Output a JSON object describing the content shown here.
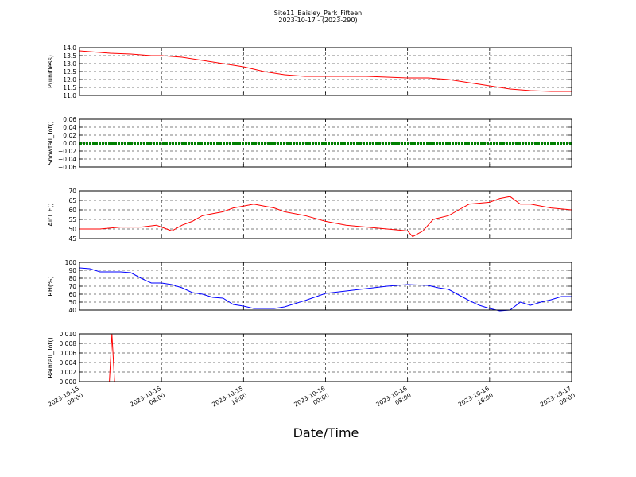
{
  "title_line1": "Site11_Baisley_Park_Fifteen",
  "title_line2": "2023-10-17 - (2023-290)",
  "xlabel": "Date/Time",
  "x_ticks": [
    {
      "line1": "2023-10-15",
      "line2": "00:00"
    },
    {
      "line1": "2023-10-15",
      "line2": "08:00"
    },
    {
      "line1": "2023-10-15",
      "line2": "16:00"
    },
    {
      "line1": "2023-10-16",
      "line2": "00:00"
    },
    {
      "line1": "2023-10-16",
      "line2": "08:00"
    },
    {
      "line1": "2023-10-16",
      "line2": "16:00"
    },
    {
      "line1": "2023-10-17",
      "line2": "00:00"
    }
  ],
  "chart_data": [
    {
      "type": "line",
      "ylabel": "P(unitless)",
      "color": "#ff0000",
      "xlim": [
        "2023-10-15 00:00",
        "2023-10-17 00:00"
      ],
      "ylim": [
        11.0,
        14.0
      ],
      "yticks": [
        "14.0",
        "13.5",
        "13.0",
        "12.5",
        "12.0",
        "11.5",
        "11.0"
      ],
      "grid": true,
      "x": [
        "2023-10-15 00:00",
        "2023-10-15 01:00",
        "2023-10-15 02:00",
        "2023-10-15 03:00",
        "2023-10-15 05:00",
        "2023-10-15 07:00",
        "2023-10-15 08:00",
        "2023-10-15 10:00",
        "2023-10-15 12:00",
        "2023-10-15 14:00",
        "2023-10-15 16:00",
        "2023-10-15 18:00",
        "2023-10-15 20:00",
        "2023-10-15 22:00",
        "2023-10-16 00:00",
        "2023-10-16 04:00",
        "2023-10-16 08:00",
        "2023-10-16 10:00",
        "2023-10-16 12:00",
        "2023-10-16 14:00",
        "2023-10-16 16:00",
        "2023-10-16 18:00",
        "2023-10-16 20:00",
        "2023-10-16 22:00",
        "2023-10-17 00:00"
      ],
      "values": [
        13.8,
        13.75,
        13.7,
        13.65,
        13.6,
        13.5,
        13.5,
        13.4,
        13.2,
        13.0,
        12.8,
        12.5,
        12.3,
        12.2,
        12.2,
        12.2,
        12.1,
        12.1,
        12.0,
        11.8,
        11.6,
        11.4,
        11.3,
        11.25,
        11.25
      ]
    },
    {
      "type": "line",
      "ylabel": "Snowfall_Tot()",
      "color": "#008000",
      "xlim": [
        "2023-10-15 00:00",
        "2023-10-17 00:00"
      ],
      "ylim": [
        -0.06,
        0.06
      ],
      "yticks": [
        "0.06",
        "0.04",
        "0.02",
        "0.00",
        "−0.02",
        "−0.04",
        "−0.06"
      ],
      "grid": true,
      "x": [
        "2023-10-15 00:00",
        "2023-10-17 00:00"
      ],
      "values": [
        0.0,
        0.0
      ]
    },
    {
      "type": "line",
      "ylabel": "AirT F()",
      "color": "#ff0000",
      "xlim": [
        "2023-10-15 00:00",
        "2023-10-17 00:00"
      ],
      "ylim": [
        45,
        70
      ],
      "yticks": [
        "70",
        "65",
        "60",
        "55",
        "50",
        "45"
      ],
      "grid": true,
      "x": [
        "2023-10-15 00:00",
        "2023-10-15 02:00",
        "2023-10-15 04:00",
        "2023-10-15 06:00",
        "2023-10-15 07:30",
        "2023-10-15 08:00",
        "2023-10-15 09:00",
        "2023-10-15 10:00",
        "2023-10-15 11:00",
        "2023-10-15 12:00",
        "2023-10-15 13:00",
        "2023-10-15 14:00",
        "2023-10-15 15:00",
        "2023-10-15 16:00",
        "2023-10-15 17:00",
        "2023-10-15 18:00",
        "2023-10-15 19:00",
        "2023-10-15 20:00",
        "2023-10-15 22:00",
        "2023-10-16 00:00",
        "2023-10-16 02:00",
        "2023-10-16 04:00",
        "2023-10-16 06:00",
        "2023-10-16 08:00",
        "2023-10-16 08:30",
        "2023-10-16 09:30",
        "2023-10-16 10:30",
        "2023-10-16 12:00",
        "2023-10-16 13:00",
        "2023-10-16 14:00",
        "2023-10-16 16:00",
        "2023-10-16 17:00",
        "2023-10-16 18:00",
        "2023-10-16 19:00",
        "2023-10-16 20:00",
        "2023-10-16 22:00",
        "2023-10-17 00:00"
      ],
      "values": [
        50,
        50,
        51,
        51,
        52,
        51,
        49,
        52,
        54,
        57,
        58,
        59,
        61,
        62,
        63,
        62,
        61,
        59,
        57,
        54,
        52,
        51,
        50,
        49,
        46,
        49,
        55,
        57,
        60,
        63,
        64,
        66,
        67,
        63,
        63,
        61,
        60
      ]
    },
    {
      "type": "line",
      "ylabel": "RH(%)",
      "color": "#0000ff",
      "xlim": [
        "2023-10-15 00:00",
        "2023-10-17 00:00"
      ],
      "ylim": [
        40,
        100
      ],
      "yticks": [
        "100",
        "90",
        "80",
        "70",
        "60",
        "50",
        "40"
      ],
      "grid": true,
      "x": [
        "2023-10-15 00:00",
        "2023-10-15 01:00",
        "2023-10-15 02:00",
        "2023-10-15 04:00",
        "2023-10-15 05:00",
        "2023-10-15 06:00",
        "2023-10-15 07:00",
        "2023-10-15 08:00",
        "2023-10-15 09:00",
        "2023-10-15 10:00",
        "2023-10-15 11:00",
        "2023-10-15 12:00",
        "2023-10-15 13:00",
        "2023-10-15 14:00",
        "2023-10-15 15:00",
        "2023-10-15 16:00",
        "2023-10-15 17:00",
        "2023-10-15 18:00",
        "2023-10-15 19:00",
        "2023-10-15 20:00",
        "2023-10-15 22:00",
        "2023-10-16 00:00",
        "2023-10-16 02:00",
        "2023-10-16 04:00",
        "2023-10-16 06:00",
        "2023-10-16 08:00",
        "2023-10-16 10:00",
        "2023-10-16 11:00",
        "2023-10-16 12:00",
        "2023-10-16 13:00",
        "2023-10-16 14:00",
        "2023-10-16 15:00",
        "2023-10-16 16:00",
        "2023-10-16 17:00",
        "2023-10-16 18:00",
        "2023-10-16 19:00",
        "2023-10-16 20:00",
        "2023-10-16 21:00",
        "2023-10-16 22:00",
        "2023-10-16 23:00",
        "2023-10-17 00:00"
      ],
      "values": [
        93,
        92,
        88,
        88,
        87,
        80,
        74,
        74,
        72,
        68,
        62,
        60,
        56,
        55,
        47,
        45,
        42,
        42,
        42,
        44,
        52,
        61,
        64,
        67,
        70,
        72,
        71,
        68,
        66,
        59,
        52,
        46,
        42,
        39,
        40,
        50,
        46,
        50,
        53,
        57,
        57
      ]
    },
    {
      "type": "line",
      "ylabel": "Rainfall_Tot()",
      "color": "#ff0000",
      "xlim": [
        "2023-10-15 00:00",
        "2023-10-17 00:00"
      ],
      "ylim": [
        0.0,
        0.01
      ],
      "yticks": [
        "0.010",
        "0.008",
        "0.006",
        "0.004",
        "0.002",
        "0.000"
      ],
      "grid": true,
      "x": [
        "2023-10-15 00:00",
        "2023-10-15 02:55",
        "2023-10-15 03:10",
        "2023-10-15 03:25",
        "2023-10-17 00:00"
      ],
      "values": [
        0.0,
        0.0,
        0.01,
        0.0,
        0.0
      ]
    }
  ]
}
